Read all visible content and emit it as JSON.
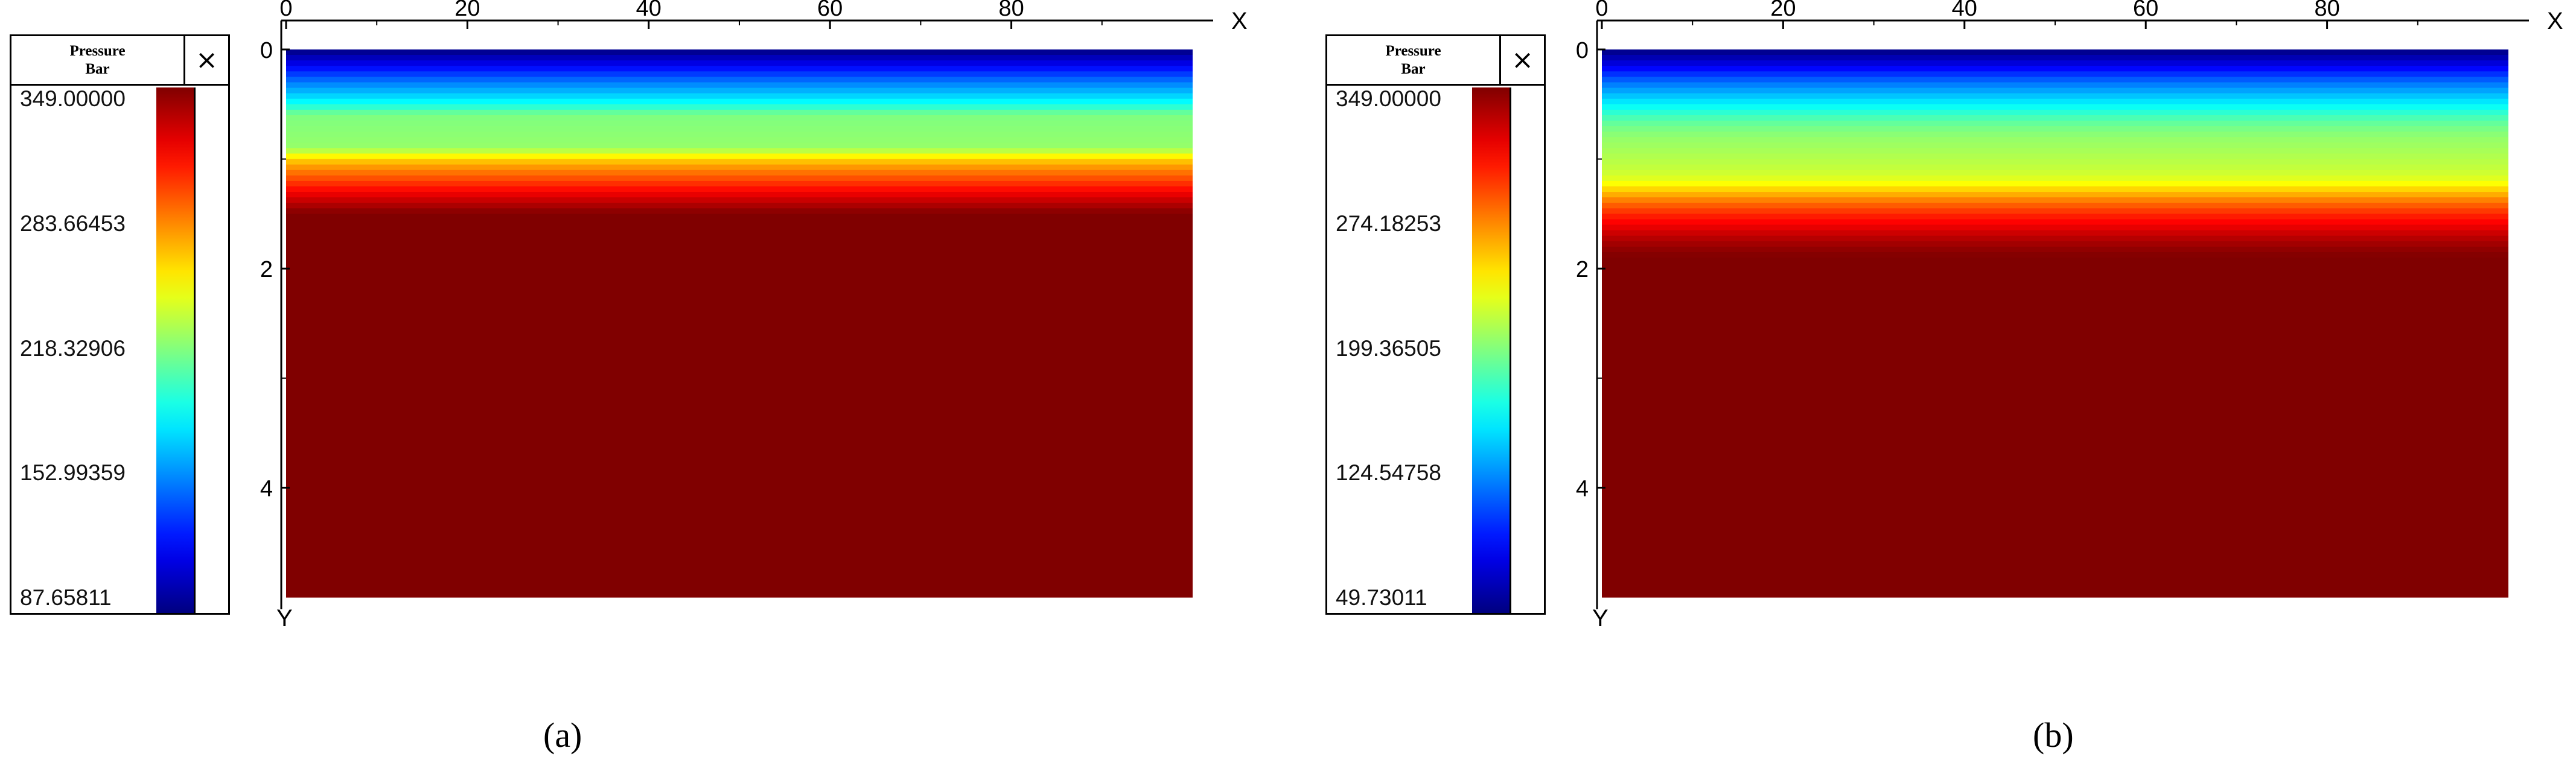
{
  "chart_data": [
    {
      "type": "heatmap",
      "panel": "a",
      "caption": "(a)",
      "colorbar": {
        "title": "Pressure\nBar",
        "close_label": "×",
        "ticks": [
          "349.00000",
          "283.66453",
          "218.32906",
          "152.99359",
          "87.65811"
        ],
        "min": 87.65811,
        "max": 349.0
      },
      "x_axis": {
        "label": "X",
        "ticks": [
          0,
          20,
          40,
          60,
          80
        ],
        "range": [
          0,
          100
        ]
      },
      "y_axis": {
        "label": "Y",
        "ticks": [
          0,
          2,
          4
        ],
        "range": [
          0,
          5
        ],
        "inverted": true
      },
      "profile": {
        "y": [
          0,
          0.1,
          0.2,
          0.3,
          0.4,
          0.5,
          0.6,
          0.7,
          0.8,
          0.9,
          1.0,
          1.1,
          1.2,
          1.3,
          1.4,
          1.5,
          5.0
        ],
        "pressure": [
          87.66,
          108,
          130,
          152,
          170,
          190,
          218,
          220,
          222,
          224,
          262,
          283,
          300,
          318,
          334,
          349,
          349
        ]
      }
    },
    {
      "type": "heatmap",
      "panel": "b",
      "caption": "(b)",
      "colorbar": {
        "title": "Pressure\nBar",
        "close_label": "×",
        "ticks": [
          "349.00000",
          "274.18253",
          "199.36505",
          "124.54758",
          "49.73011"
        ],
        "min": 49.73011,
        "max": 349.0
      },
      "x_axis": {
        "label": "X",
        "ticks": [
          0,
          20,
          40,
          60,
          80
        ],
        "range": [
          0,
          100
        ]
      },
      "y_axis": {
        "label": "Y",
        "ticks": [
          0,
          2,
          4
        ],
        "range": [
          0,
          5
        ],
        "inverted": true
      },
      "profile": {
        "y": [
          0,
          0.1,
          0.2,
          0.3,
          0.4,
          0.5,
          0.6,
          0.7,
          0.8,
          0.9,
          1.0,
          1.1,
          1.2,
          1.3,
          1.4,
          1.5,
          1.6,
          1.7,
          1.8,
          1.9,
          5.0
        ],
        "pressure": [
          49.73,
          70,
          95,
          120,
          140,
          160,
          180,
          195,
          205,
          210,
          215,
          220,
          230,
          255,
          280,
          300,
          315,
          330,
          342,
          349,
          349
        ]
      }
    }
  ]
}
